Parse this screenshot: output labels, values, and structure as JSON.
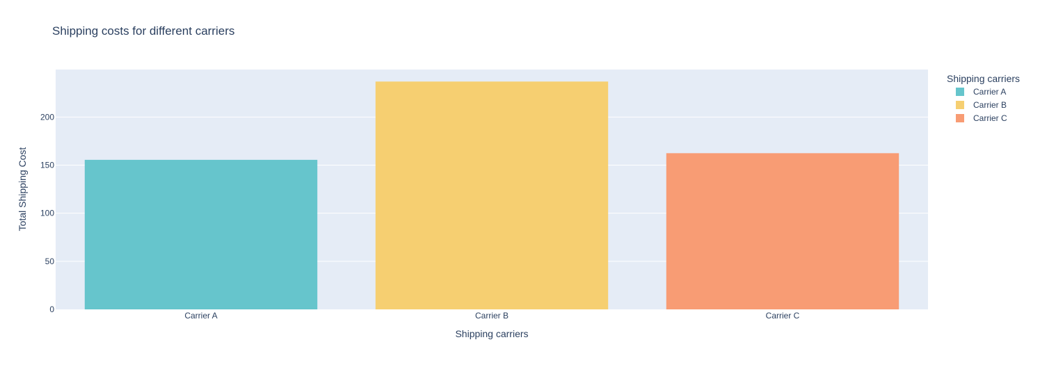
{
  "chart_data": {
    "type": "bar",
    "title": "Shipping costs for different carriers",
    "xlabel": "Shipping carriers",
    "ylabel": "Total Shipping Cost",
    "categories": [
      "Carrier A",
      "Carrier B",
      "Carrier C"
    ],
    "values": [
      155.5,
      236.9,
      162.4
    ],
    "colors": [
      "#66c5cc",
      "#f6cf71",
      "#f89c74"
    ],
    "ylim": [
      0,
      249.4
    ],
    "yticks": [
      0,
      50,
      100,
      150,
      200
    ],
    "grid": true,
    "legend": {
      "title": "Shipping carriers",
      "position": "right",
      "entries": [
        "Carrier A",
        "Carrier B",
        "Carrier C"
      ]
    },
    "plot_background": "#e5ecf6"
  }
}
